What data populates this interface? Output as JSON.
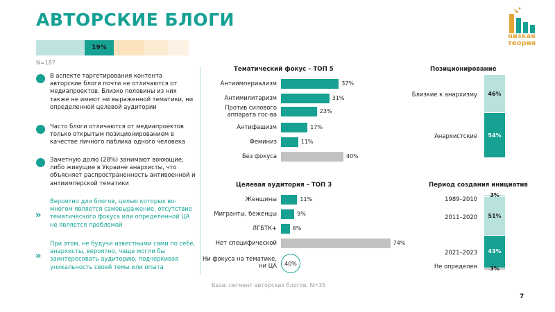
{
  "header": {
    "title": "АВТОРСКИЕ БЛОГИ",
    "logo_text": [
      "низкая",
      "теория"
    ],
    "sample_label": "N=187",
    "share_strip": {
      "highlight_label": "19%",
      "highlight_value": 19
    }
  },
  "bullets": [
    {
      "type": "dot",
      "text": "В аспекте таргетирования контента авторские блоги почти не отличаются от медиапроектов. Близко половины из них также не имеют ни выраженной тематики, ни определенной целевой аудитории"
    },
    {
      "type": "dot",
      "text": "Часто блоги отличаются от медиапроектов только открытым позиционированием в качестве личного паблика одного человека"
    },
    {
      "type": "dot",
      "text": "Заметную долю (28%) занимают воюющие, либо живущие в Украине анархисты, что объясняет распространенность антивоенной и антиимперской тематики"
    },
    {
      "type": "chevron",
      "text": "Вероятно для блогов, целью которых во-многом является самовыражение, отсутствие тематического фокуса или определенной ЦА не является проблемой"
    },
    {
      "type": "chevron",
      "text": "При этом, не будучи известными сами по себе, анархисты, вероятно, чаще могли бы заинтересовать аудиторию, подчеркивая уникальность своей темы или опыта"
    }
  ],
  "footer": {
    "base_note": "База: сегмент авторских блогов, N=35",
    "page_number": "7"
  },
  "colors": {
    "teal": "#16a193",
    "grey": "#c2c2c2",
    "logo": "#e2a63a"
  },
  "chart_data": [
    {
      "type": "bar",
      "title": "Тематический фокус – ТОП 5",
      "categories": [
        "Антиимпериализм",
        "Антимилитаризм",
        "Против силового аппарата гос-ва",
        "Антифашизм",
        "Феминиз",
        "Без фокуса"
      ],
      "values": [
        37,
        31,
        23,
        17,
        11,
        40
      ],
      "labels": [
        "37%",
        "31%",
        "23%",
        "17%",
        "11%",
        "40%"
      ]
    },
    {
      "type": "bar",
      "title": "Целевая аудитория – ТОП 3",
      "categories": [
        "Женщины",
        "Мигранты, беженцы",
        "ЛГБТК+",
        "Нет специфической",
        "Ни фокуса на тематике, ни ЦА"
      ],
      "values": [
        11,
        9,
        6,
        74,
        40
      ],
      "labels": [
        "11%",
        "9%",
        "6%",
        "74%",
        "40%"
      ]
    },
    {
      "type": "bar",
      "title": "Позиционирование",
      "categories": [
        "Близкие к анархизму",
        "Анархистские"
      ],
      "values": [
        46,
        54
      ],
      "labels": [
        "46%",
        "54%"
      ]
    },
    {
      "type": "bar",
      "title": "Период создания инициатив",
      "categories": [
        "1989–2010",
        "2011–2020",
        "2021–2023",
        "Не определен"
      ],
      "values": [
        3,
        51,
        43,
        3
      ],
      "labels": [
        "3%",
        "51%",
        "43%",
        "3%"
      ]
    }
  ]
}
